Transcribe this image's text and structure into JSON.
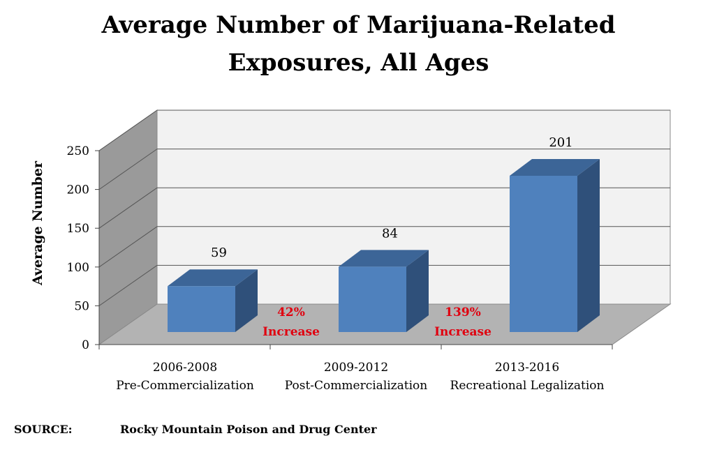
{
  "title_line1": "Average Number of Marijuana-Related",
  "title_line2": "Exposures, All Ages",
  "chart_data": {
    "type": "bar",
    "title": "Average Number of Marijuana-Related Exposures, All Ages",
    "ylabel": "Average Number",
    "xlabel": "",
    "ylim": [
      0,
      250
    ],
    "yticks": [
      0,
      50,
      100,
      150,
      200,
      250
    ],
    "categories": [
      {
        "period": "2006-2008",
        "label": "Pre-Commercialization"
      },
      {
        "period": "2009-2012",
        "label": "Post-Commercialization"
      },
      {
        "period": "2013-2016",
        "label": "Recreational Legalization"
      }
    ],
    "values": [
      59,
      84,
      201
    ],
    "data_labels": [
      "59",
      "84",
      "201"
    ],
    "annotations": [
      {
        "pct": "42%",
        "text": "Increase"
      },
      {
        "pct": "139%",
        "text": "Increase"
      }
    ],
    "colors": {
      "bar_front": "#4f81bd",
      "bar_top": "#3c6597",
      "bar_side": "#2f507a",
      "annotation": "#e0000f"
    }
  },
  "source": {
    "label": "SOURCE:",
    "text": "Rocky Mountain Poison and Drug Center"
  }
}
